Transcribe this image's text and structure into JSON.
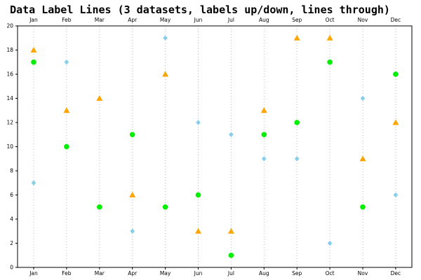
{
  "chart_data": {
    "type": "scatter",
    "title": "Data Label Lines (3 datasets, labels up/down, lines through)",
    "xlabel": "",
    "ylabel": "",
    "categories": [
      "Jan",
      "Feb",
      "Mar",
      "Apr",
      "May",
      "Jun",
      "Jul",
      "Aug",
      "Sep",
      "Oct",
      "Nov",
      "Dec"
    ],
    "ylim": [
      0,
      20
    ],
    "yticks": [
      0,
      2,
      4,
      6,
      8,
      10,
      12,
      14,
      16,
      18,
      20
    ],
    "grid": {
      "x": true,
      "y": false
    },
    "x_labels_top": true,
    "x_labels_bottom": true,
    "series": [
      {
        "marker": "triangle",
        "color": "#ffa500",
        "values": [
          18,
          13,
          14,
          6,
          16,
          3,
          3,
          13,
          19,
          19,
          9,
          12
        ]
      },
      {
        "marker": "circle",
        "color": "#00ee00",
        "values": [
          17,
          10,
          5,
          11,
          5,
          6,
          1,
          11,
          12,
          17,
          5,
          16
        ]
      },
      {
        "marker": "diamond",
        "color": "#87ceeb",
        "values": [
          7,
          17,
          null,
          3,
          19,
          12,
          11,
          9,
          9,
          2,
          14,
          6
        ]
      }
    ]
  }
}
